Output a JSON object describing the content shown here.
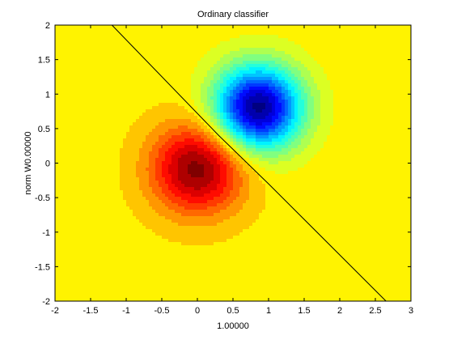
{
  "chart_data": {
    "type": "heatmap",
    "title": "Ordinary classifier",
    "xlabel": "1.00000",
    "ylabel": "norm W0.00000",
    "xlim": [
      -2,
      3
    ],
    "ylim": [
      -2,
      2
    ],
    "xticks": [
      -2,
      -1.5,
      -1,
      -0.5,
      0,
      0.5,
      1,
      1.5,
      2,
      2.5,
      3
    ],
    "yticks": [
      -2,
      -1.5,
      -1,
      -0.5,
      0,
      0.5,
      1,
      1.5,
      2
    ],
    "xtick_labels": [
      "-2",
      "-1.5",
      "-1",
      "-0.5",
      "0",
      "0.5",
      "1",
      "1.5",
      "2",
      "2.5",
      "3"
    ],
    "ytick_labels": [
      "-2",
      "-1.5",
      "-1",
      "-0.5",
      "0",
      "0.5",
      "1",
      "1.5",
      "2"
    ],
    "colormap": "jet",
    "grid": false,
    "hot_spot": {
      "x": 0.0,
      "y": -0.08
    },
    "cold_spot": {
      "x": 0.85,
      "y": 0.8
    },
    "decision_boundary": [
      {
        "x": -1.2,
        "y": 2.0
      },
      {
        "x": 0.3,
        "y": 0.4
      },
      {
        "x": 1.0,
        "y": -0.3
      },
      {
        "x": 2.65,
        "y": -2.0
      }
    ],
    "boundary_color": "#000000"
  }
}
